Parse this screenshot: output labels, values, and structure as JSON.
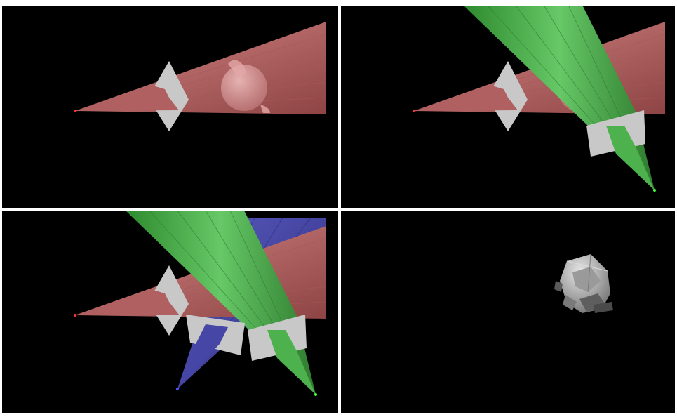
{
  "colors": {
    "background": "#000000",
    "frame": "#ffffff",
    "cone_red": "#b86565",
    "cone_green": "#4db24d",
    "cone_blue": "#4646a6",
    "image_plane": "#c8c8c8",
    "sphere": "#e0a0a0",
    "reconstruction": "#b4b4b4"
  },
  "panels": [
    {
      "name": "one-camera-view",
      "cameras": [
        "red"
      ]
    },
    {
      "name": "two-camera-view",
      "cameras": [
        "red",
        "green"
      ]
    },
    {
      "name": "three-camera-view",
      "cameras": [
        "red",
        "green",
        "blue"
      ]
    },
    {
      "name": "reconstruction-result",
      "cameras": []
    }
  ]
}
